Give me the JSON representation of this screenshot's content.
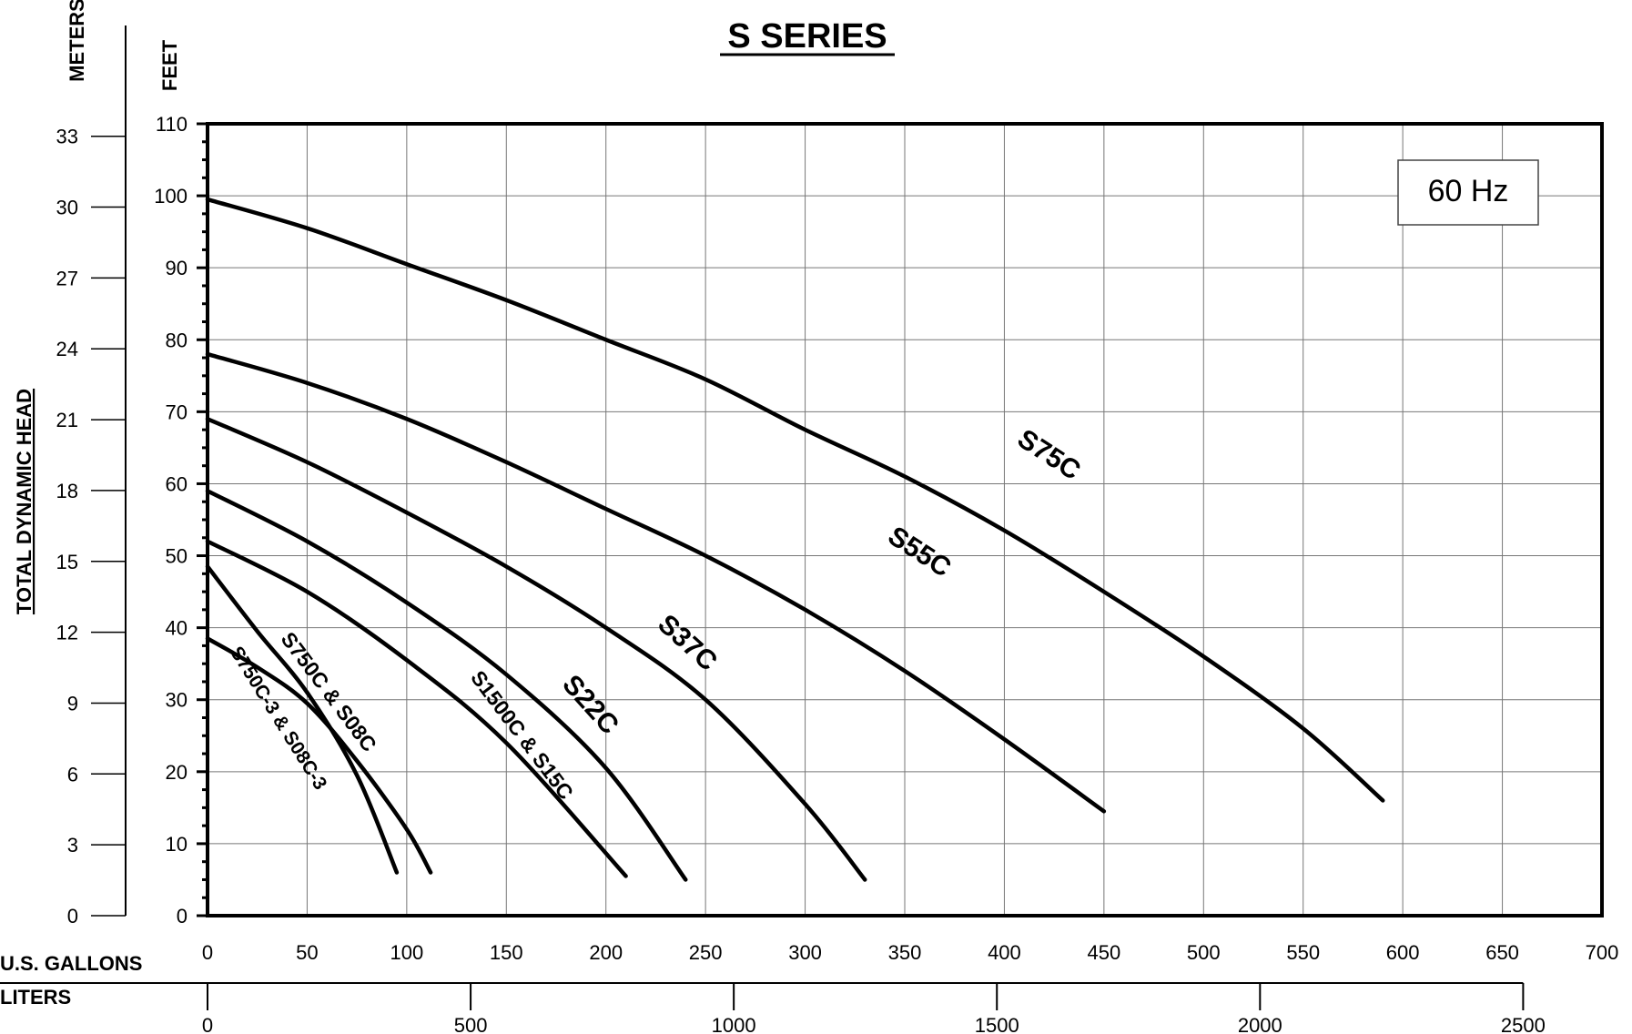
{
  "chart_data": {
    "type": "line",
    "title": "S SERIES",
    "xlabel": "U.S. GALLONS",
    "x2label": "LITERS",
    "ylabel": "TOTAL DYNAMIC HEAD",
    "y_unit_feet": "FEET",
    "y_unit_meters": "METERS",
    "frequency_label": "60 Hz",
    "xlim": [
      0,
      700
    ],
    "ylim": [
      0,
      110
    ],
    "x_ticks": [
      0,
      50,
      100,
      150,
      200,
      250,
      300,
      350,
      400,
      450,
      500,
      550,
      600,
      650,
      700
    ],
    "y_ticks": [
      0,
      10,
      20,
      30,
      40,
      50,
      60,
      70,
      80,
      90,
      100,
      110
    ],
    "meter_ticks": [
      0,
      3,
      6,
      9,
      12,
      15,
      18,
      21,
      24,
      27,
      30,
      33
    ],
    "liter_ticks": [
      0,
      500,
      1000,
      1500,
      2000,
      2500
    ],
    "grid": true,
    "series": [
      {
        "name": "S75C",
        "x": [
          0,
          50,
          100,
          150,
          200,
          250,
          300,
          350,
          400,
          450,
          500,
          550,
          590
        ],
        "y": [
          99.5,
          95.5,
          90.5,
          85.5,
          80,
          74.5,
          67.5,
          61,
          53.5,
          45,
          36,
          26,
          16
        ]
      },
      {
        "name": "S55C",
        "x": [
          0,
          50,
          100,
          150,
          200,
          250,
          300,
          350,
          400,
          450
        ],
        "y": [
          78,
          74,
          69,
          63,
          56.5,
          50,
          42.5,
          34,
          24.5,
          14.5
        ]
      },
      {
        "name": "S37C",
        "x": [
          0,
          50,
          100,
          150,
          200,
          250,
          300,
          330
        ],
        "y": [
          69,
          63,
          56,
          48.5,
          40,
          30,
          15.5,
          5
        ]
      },
      {
        "name": "S22C",
        "x": [
          0,
          50,
          100,
          150,
          200,
          240
        ],
        "y": [
          59,
          52,
          43.5,
          33.5,
          20.5,
          5
        ]
      },
      {
        "name": "S1500C & S15C",
        "x": [
          0,
          50,
          100,
          150,
          210
        ],
        "y": [
          52,
          45,
          35.5,
          24,
          5.5
        ]
      },
      {
        "name": "S750C & S08C",
        "x": [
          0,
          25,
          50,
          75,
          95
        ],
        "y": [
          48.5,
          39.5,
          31,
          19.5,
          6
        ]
      },
      {
        "name": "S750C-3 & S08C-3",
        "x": [
          0,
          25,
          50,
          75,
          100,
          112
        ],
        "y": [
          38.5,
          34.5,
          29.5,
          21.5,
          12,
          6
        ]
      }
    ]
  }
}
